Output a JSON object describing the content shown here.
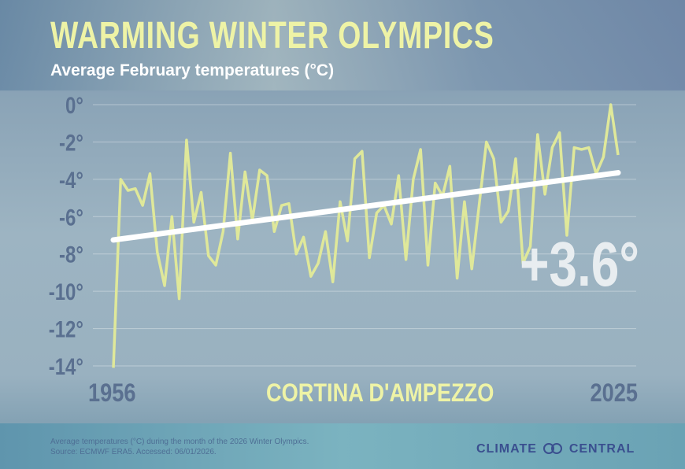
{
  "title": "WARMING WINTER OLYMPICS",
  "subtitle": "Average February temperatures (°C)",
  "footer": {
    "note": "Average temperatures (°C) during the month of the 2026 Winter Olympics.",
    "source": "Source: ECMWF ERA5. Accessed: 06/01/2026.",
    "brand_left": "CLIMATE",
    "brand_right": "CENTRAL"
  },
  "colors": {
    "series": "#dfe89a",
    "trend": "#ffffff",
    "title": "#eef3a6",
    "axis_text": "#5a7090"
  },
  "chart_data": {
    "type": "line",
    "title": "WARMING WINTER OLYMPICS",
    "subtitle": "Average February temperatures (°C)",
    "location_label": "CORTINA D'AMPEZZO",
    "annotation": "+3.6°",
    "x_labels": [
      "1956",
      "2025"
    ],
    "y_ticks": [
      0,
      -2,
      -4,
      -6,
      -8,
      -10,
      -12,
      -14
    ],
    "y_tick_labels": [
      "0°",
      "-2°",
      "-4°",
      "-6°",
      "-8°",
      "-10°",
      "-12°",
      "-14°"
    ],
    "ylim": [
      -14,
      0
    ],
    "xlim": [
      1956,
      2025
    ],
    "grid": true,
    "x": [
      1956,
      1957,
      1958,
      1959,
      1960,
      1961,
      1962,
      1963,
      1964,
      1965,
      1966,
      1967,
      1968,
      1969,
      1970,
      1971,
      1972,
      1973,
      1974,
      1975,
      1976,
      1977,
      1978,
      1979,
      1980,
      1981,
      1982,
      1983,
      1984,
      1985,
      1986,
      1987,
      1988,
      1989,
      1990,
      1991,
      1992,
      1993,
      1994,
      1995,
      1996,
      1997,
      1998,
      1999,
      2000,
      2001,
      2002,
      2003,
      2004,
      2005,
      2006,
      2007,
      2008,
      2009,
      2010,
      2011,
      2012,
      2013,
      2014,
      2015,
      2016,
      2017,
      2018,
      2019,
      2020,
      2021,
      2022,
      2023,
      2024,
      2025
    ],
    "values": [
      -14.1,
      -4.0,
      -4.6,
      -4.5,
      -5.4,
      -3.7,
      -7.9,
      -9.7,
      -6.0,
      -10.4,
      -1.9,
      -6.3,
      -4.7,
      -8.1,
      -8.6,
      -6.8,
      -2.6,
      -7.2,
      -3.6,
      -6.2,
      -3.5,
      -3.8,
      -6.8,
      -5.4,
      -5.3,
      -8.0,
      -7.1,
      -9.2,
      -8.5,
      -6.8,
      -9.5,
      -5.2,
      -7.3,
      -2.9,
      -2.5,
      -8.2,
      -5.8,
      -5.4,
      -6.4,
      -3.8,
      -8.3,
      -4.0,
      -2.4,
      -8.6,
      -4.2,
      -4.9,
      -3.3,
      -9.3,
      -5.2,
      -8.8,
      -5.4,
      -2.0,
      -2.9,
      -6.3,
      -5.7,
      -2.9,
      -8.5,
      -7.6,
      -1.6,
      -4.8,
      -2.3,
      -1.5,
      -7.0,
      -2.3,
      -2.4,
      -2.3,
      -3.7,
      -2.8,
      0.0,
      -2.7
    ],
    "trend": {
      "start": [
        1956,
        -7.25
      ],
      "end": [
        2025,
        -3.65
      ]
    }
  }
}
